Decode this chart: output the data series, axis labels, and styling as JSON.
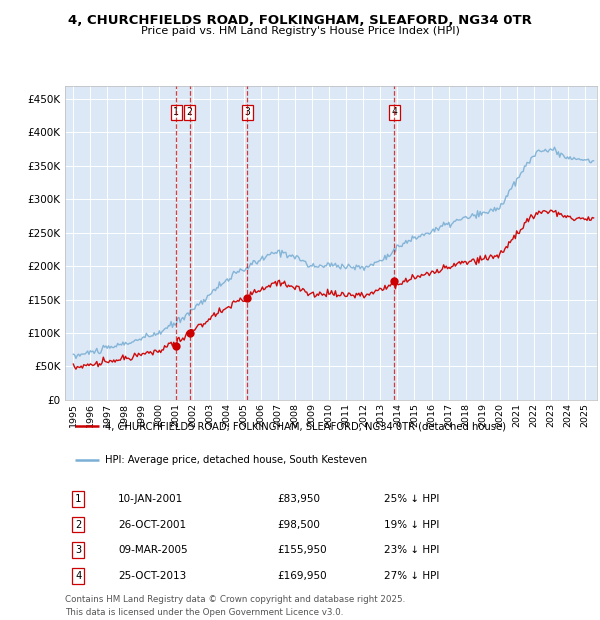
{
  "title_line1": "4, CHURCHFIELDS ROAD, FOLKINGHAM, SLEAFORD, NG34 0TR",
  "title_line2": "Price paid vs. HM Land Registry's House Price Index (HPI)",
  "background_color": "#ffffff",
  "plot_bg_color": "#dce8f5",
  "grid_color": "#ffffff",
  "hpi_color": "#7bafd4",
  "price_color": "#cc0000",
  "ylim": [
    0,
    470000
  ],
  "yticks": [
    0,
    50000,
    100000,
    150000,
    200000,
    250000,
    300000,
    350000,
    400000,
    450000
  ],
  "ytick_labels": [
    "£0",
    "£50K",
    "£100K",
    "£150K",
    "£200K",
    "£250K",
    "£300K",
    "£350K",
    "£400K",
    "£450K"
  ],
  "transactions": [
    {
      "id": 1,
      "date_label": "10-JAN-2001",
      "date_num": 2001.03,
      "price": 83950,
      "pct": "25%",
      "dir": "↓"
    },
    {
      "id": 2,
      "date_label": "26-OCT-2001",
      "date_num": 2001.82,
      "price": 98500,
      "pct": "19%",
      "dir": "↓"
    },
    {
      "id": 3,
      "date_label": "09-MAR-2005",
      "date_num": 2005.19,
      "price": 155950,
      "pct": "23%",
      "dir": "↓"
    },
    {
      "id": 4,
      "date_label": "25-OCT-2013",
      "date_num": 2013.82,
      "price": 169950,
      "pct": "27%",
      "dir": "↓"
    }
  ],
  "legend_line1": "4, CHURCHFIELDS ROAD, FOLKINGHAM, SLEAFORD, NG34 0TR (detached house)",
  "legend_line2": "HPI: Average price, detached house, South Kesteven",
  "footer_line1": "Contains HM Land Registry data © Crown copyright and database right 2025.",
  "footer_line2": "This data is licensed under the Open Government Licence v3.0.",
  "xlim_start": 1994.5,
  "xlim_end": 2025.7,
  "xticks": [
    1995,
    1996,
    1997,
    1998,
    1999,
    2000,
    2001,
    2002,
    2003,
    2004,
    2005,
    2006,
    2007,
    2008,
    2009,
    2010,
    2011,
    2012,
    2013,
    2014,
    2015,
    2016,
    2017,
    2018,
    2019,
    2020,
    2021,
    2022,
    2023,
    2024,
    2025
  ],
  "hpi_base_years": [
    1995,
    1996,
    1997,
    1998,
    1999,
    2000,
    2001,
    2002,
    2003,
    2004,
    2005,
    2006,
    2007,
    2008,
    2009,
    2010,
    2011,
    2012,
    2013,
    2014,
    2015,
    2016,
    2017,
    2018,
    2019,
    2020,
    2021,
    2022,
    2023,
    2024,
    2025
  ],
  "hpi_base_vals": [
    65000,
    71000,
    77000,
    84000,
    91000,
    100000,
    115000,
    135000,
    158000,
    180000,
    195000,
    210000,
    222000,
    215000,
    198000,
    202000,
    200000,
    197000,
    208000,
    228000,
    242000,
    252000,
    263000,
    272000,
    278000,
    288000,
    328000,
    368000,
    375000,
    362000,
    358000
  ],
  "price_noise_seed": 42,
  "hpi_noise_seed": 42
}
